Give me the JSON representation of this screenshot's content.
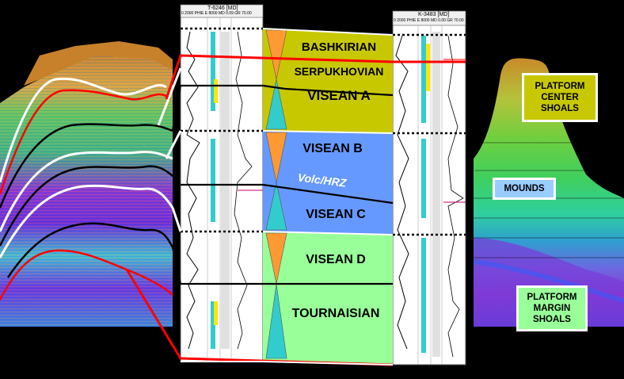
{
  "zones": {
    "bashkirian": "BASHKIRIAN",
    "serpukhovian": "SERPUKHOVIAN",
    "visean_a": "VISEAN  A",
    "visean_b": "VISEAN  B",
    "volc_hrz": "Volc/HRZ",
    "visean_c": "VISEAN  C",
    "visean_d": "VISEAN  D",
    "tournaisian": "TOURNAISIAN"
  },
  "callouts": {
    "platform_center": "PLATFORM CENTER SHOALS",
    "mounds": "MOUNDS",
    "platform_margin": "PLATFORM MARGIN SHOALS"
  },
  "wells": {
    "left_header": "T-6246 [MD]",
    "left_tracks": "0 2000 PHIE E 8000     MD     0.09  GR  70.00",
    "right_header": "K-3483 [MD]",
    "right_tracks": "0 2000 PHIE  E 8000   MD  0.00 GR  70.00"
  },
  "colors": {
    "bashkirian_serpukhovian_visean_a": "#c8c800",
    "visean_b_c": "#6699ff",
    "visean_d_tournaisian": "#99ff99",
    "regressive_triangle": "#ff9933",
    "transgressive_triangle": "#33cccc",
    "red_boundary": "#ff0000",
    "callout_fill_top": "#c8c800",
    "callout_fill_mid": "#99ccff",
    "callout_fill_bottom": "#99ff99"
  }
}
